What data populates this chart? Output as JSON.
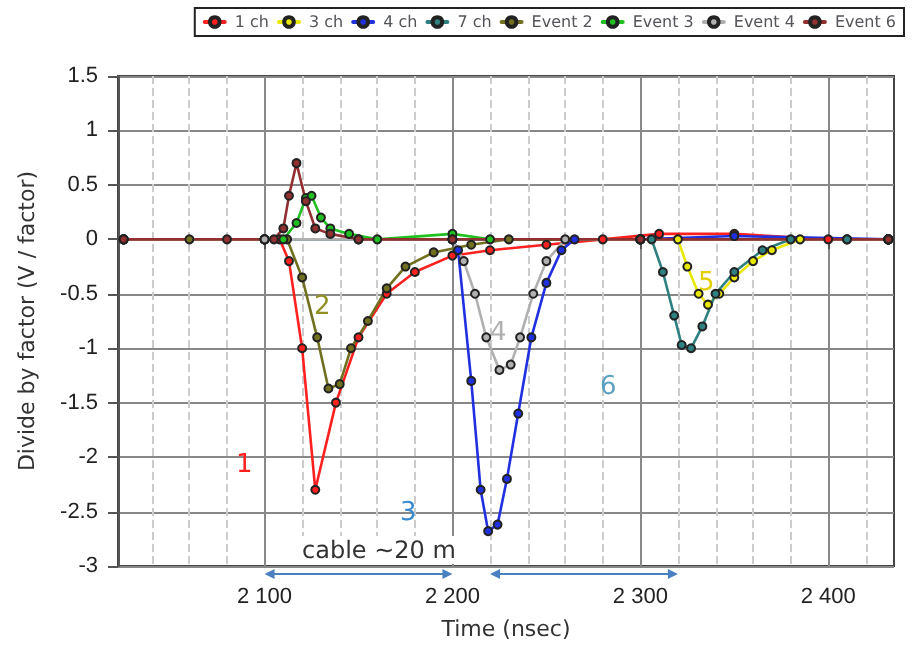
{
  "chart_data": {
    "type": "line",
    "xlabel": "Time (nsec)",
    "ylabel": "Divide by factor (V / factor)",
    "xlim": [
      2022,
      2435
    ],
    "xticks": [
      {
        "value": 2100,
        "label": "2 100"
      },
      {
        "value": 2200,
        "label": "2 200"
      },
      {
        "value": 2300,
        "label": "2 300"
      },
      {
        "value": 2400,
        "label": "2 400"
      }
    ],
    "ylim": [
      -3,
      1.5
    ],
    "yticks": [
      -3,
      -2.5,
      -2,
      -1.5,
      -1,
      -0.5,
      0,
      0.5,
      1,
      1.5
    ],
    "grid": true,
    "legend": "top right",
    "marker": "circle",
    "line_style": "solid",
    "series": [
      {
        "name": "1 ch",
        "color": "#ff2020",
        "x": [
          2100,
          2108,
          2113,
          2120,
          2127,
          2138,
          2150,
          2165,
          2180,
          2200,
          2220,
          2250,
          2280,
          2310,
          2350,
          2400,
          2432
        ],
        "values": [
          0,
          0,
          -0.2,
          -1,
          -2.3,
          -1.5,
          -0.9,
          -0.5,
          -0.3,
          -0.15,
          -0.1,
          -0.05,
          0,
          0.05,
          0.05,
          0,
          0
        ]
      },
      {
        "name": "3 ch",
        "color": "#e8e800",
        "x": [
          2300,
          2320,
          2325,
          2331,
          2336,
          2342,
          2350,
          2360,
          2370,
          2385,
          2410,
          2432
        ],
        "values": [
          0,
          0,
          -0.25,
          -0.5,
          -0.6,
          -0.5,
          -0.35,
          -0.2,
          -0.1,
          0,
          0,
          0
        ]
      },
      {
        "name": "4 ch",
        "color": "#2030e0",
        "x": [
          2150,
          2200,
          2203,
          2210,
          2215,
          2219,
          2224,
          2229,
          2235,
          2242,
          2250,
          2258,
          2265,
          2300,
          2350,
          2432
        ],
        "values": [
          0,
          0,
          -0.1,
          -1.3,
          -2.3,
          -2.68,
          -2.62,
          -2.2,
          -1.6,
          -0.9,
          -0.4,
          -0.1,
          0,
          0,
          0.03,
          0
        ]
      },
      {
        "name": "7 ch",
        "color": "#2f8080",
        "x": [
          2025,
          2100,
          2200,
          2300,
          2306,
          2312,
          2318,
          2322,
          2327,
          2333,
          2340,
          2350,
          2365,
          2380,
          2410,
          2432
        ],
        "values": [
          0,
          0,
          0,
          0,
          0,
          -0.3,
          -0.7,
          -0.97,
          -1,
          -0.8,
          -0.5,
          -0.3,
          -0.1,
          0,
          0,
          0
        ]
      },
      {
        "name": "Event 2",
        "color": "#707020",
        "x": [
          2025,
          2060,
          2100,
          2112,
          2120,
          2128,
          2134,
          2140,
          2146,
          2155,
          2165,
          2175,
          2190,
          2210,
          2230,
          2300,
          2432
        ],
        "values": [
          0,
          0,
          0,
          0,
          -0.35,
          -0.9,
          -1.37,
          -1.33,
          -1,
          -0.75,
          -0.45,
          -0.25,
          -0.12,
          -0.05,
          0,
          0,
          0
        ]
      },
      {
        "name": "Event 3",
        "color": "#20c020",
        "x": [
          2025,
          2100,
          2110,
          2117,
          2122,
          2125,
          2130,
          2135,
          2145,
          2160,
          2200,
          2220,
          2300,
          2432
        ],
        "values": [
          0,
          0,
          0,
          0.15,
          0.38,
          0.4,
          0.2,
          0.1,
          0.05,
          0,
          0.05,
          0,
          0,
          0
        ]
      },
      {
        "name": "Event 4",
        "color": "#b0b0b0",
        "x": [
          2025,
          2100,
          2200,
          2206,
          2212,
          2218,
          2225,
          2231,
          2236,
          2243,
          2250,
          2260,
          2300,
          2432
        ],
        "values": [
          0,
          0,
          0,
          -0.2,
          -0.5,
          -0.9,
          -1.2,
          -1.15,
          -0.9,
          -0.5,
          -0.2,
          0,
          0,
          0
        ]
      },
      {
        "name": "Event 6",
        "color": "#903030",
        "x": [
          2025,
          2080,
          2105,
          2110,
          2113,
          2117,
          2122,
          2127,
          2135,
          2150,
          2200,
          2300,
          2432
        ],
        "values": [
          0,
          0,
          0,
          0.1,
          0.4,
          0.7,
          0.35,
          0.1,
          0.05,
          0,
          0,
          0,
          0
        ]
      }
    ],
    "annotations": [
      "1",
      "2",
      "3",
      "4",
      "5",
      "6",
      "cable ~20 m"
    ]
  }
}
